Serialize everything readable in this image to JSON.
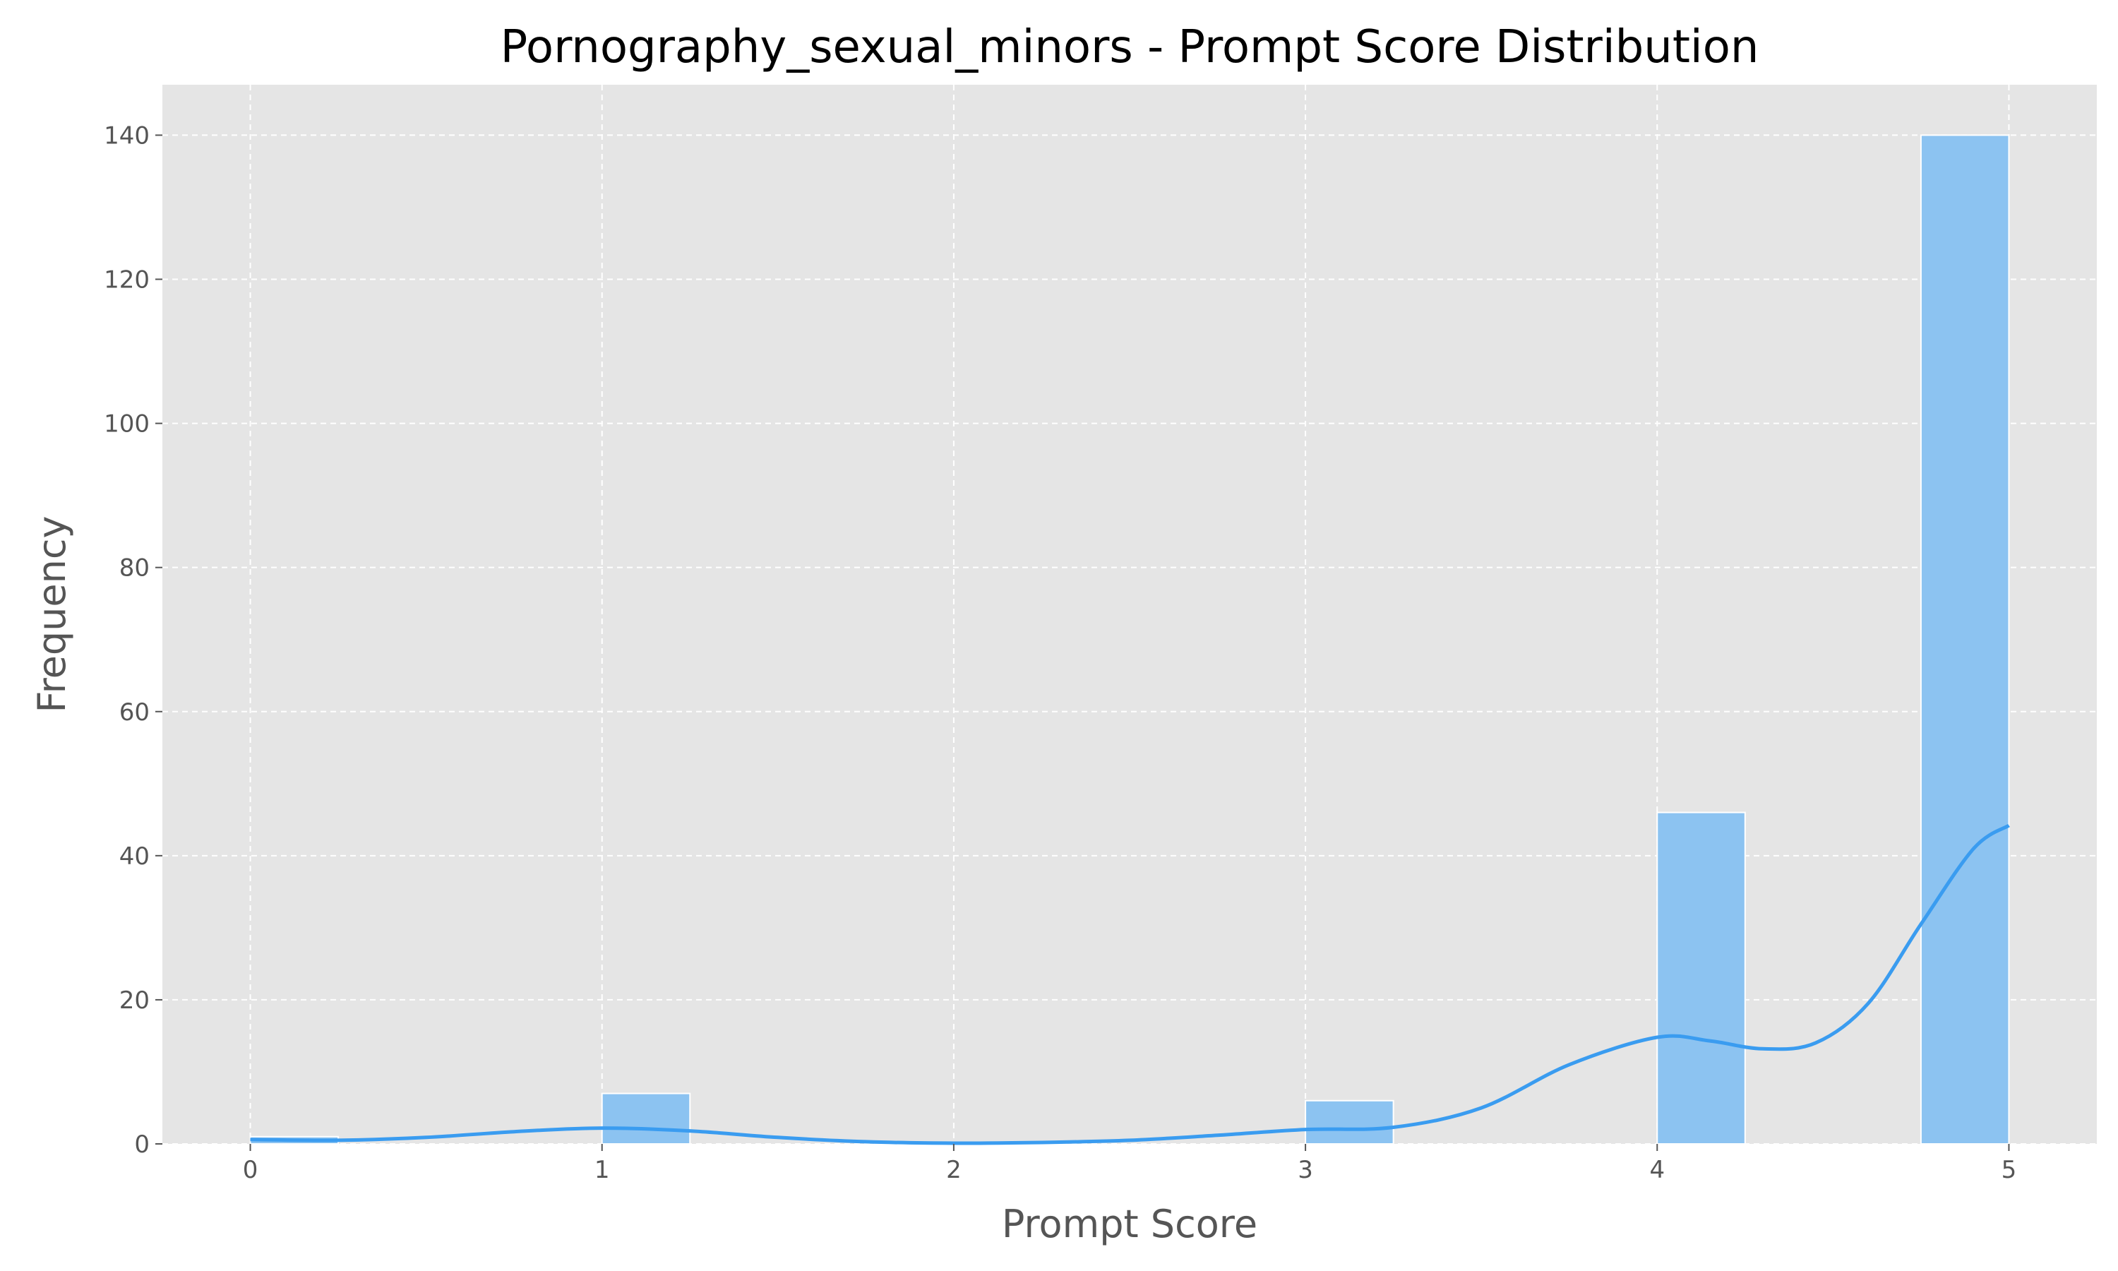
{
  "chart_data": {
    "type": "bar",
    "title": "Pornography_sexual_minors - Prompt Score Distribution",
    "xlabel": "Prompt Score",
    "ylabel": "Frequency",
    "xlim": [
      -0.25,
      5.25
    ],
    "ylim": [
      0,
      147
    ],
    "xticks": [
      0,
      1,
      2,
      3,
      4,
      5
    ],
    "yticks": [
      0,
      20,
      40,
      60,
      80,
      100,
      120,
      140
    ],
    "grid": true,
    "bins": [
      {
        "x0": 0.0,
        "x1": 0.25,
        "count": 1
      },
      {
        "x0": 1.0,
        "x1": 1.25,
        "count": 7
      },
      {
        "x0": 3.0,
        "x1": 3.25,
        "count": 6
      },
      {
        "x0": 4.0,
        "x1": 4.25,
        "count": 46
      },
      {
        "x0": 4.75,
        "x1": 5.0,
        "count": 140
      }
    ],
    "kde": {
      "x": [
        0.0,
        0.25,
        0.5,
        0.75,
        1.0,
        1.25,
        1.5,
        1.75,
        2.0,
        2.25,
        2.5,
        2.75,
        3.0,
        3.25,
        3.5,
        3.75,
        4.0,
        4.15,
        4.3,
        4.45,
        4.6,
        4.75,
        4.9,
        5.0
      ],
      "y": [
        0.6,
        0.5,
        0.9,
        1.7,
        2.2,
        1.8,
        0.9,
        0.3,
        0.1,
        0.2,
        0.5,
        1.2,
        2.0,
        2.3,
        5.0,
        11.0,
        14.8,
        14.3,
        13.2,
        14.0,
        19.5,
        30.5,
        41.0,
        44.2
      ]
    },
    "colors": {
      "bar": "#8cc3f1",
      "bar_edge": "#ffffff",
      "kde": "#3a9cf0",
      "plot_bg": "#e5e5e5",
      "grid": "#ffffff",
      "text": "#555555",
      "title": "#000000"
    }
  }
}
